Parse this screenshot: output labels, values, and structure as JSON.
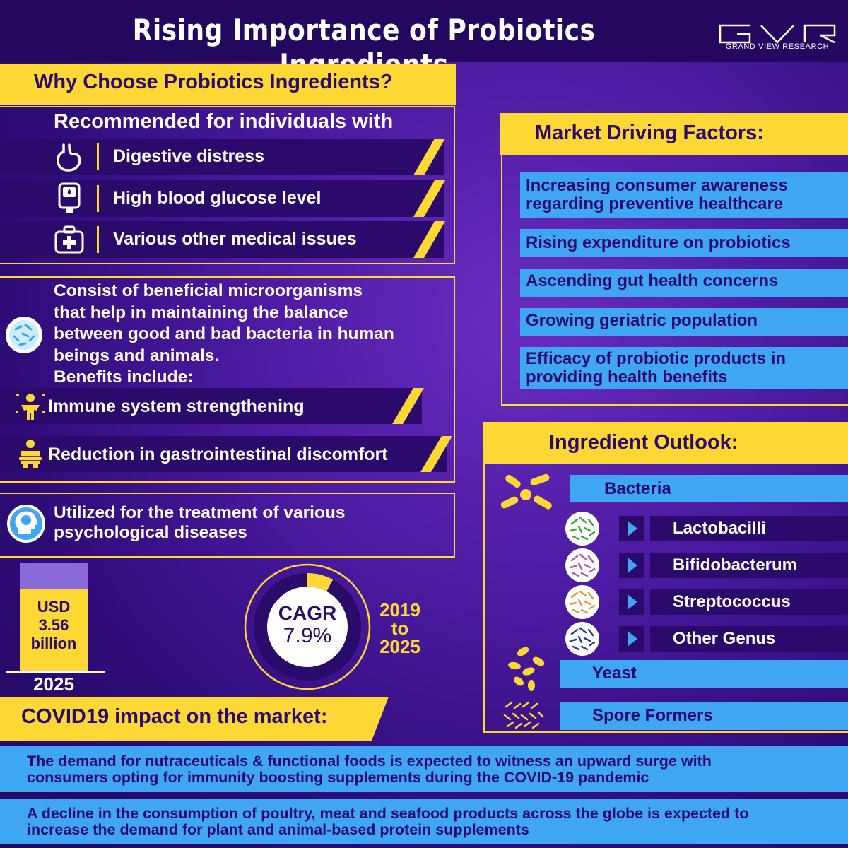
{
  "header": {
    "title": "Rising Importance of Probiotics Ingredients",
    "logo_text": "GRAND VIEW RESEARCH",
    "logo_icon": "gvr-logo-icon"
  },
  "why": {
    "title": "Why Choose Probiotics Ingredients?",
    "recommended_heading": "Recommended for individuals with",
    "conditions": [
      {
        "label": "Digestive distress",
        "icon": "stomach-icon"
      },
      {
        "label": "High blood glucose level",
        "icon": "glucometer-icon"
      },
      {
        "label": "Various other medical issues",
        "icon": "first-aid-icon"
      }
    ],
    "description_lines": [
      "Consist of beneficial microorganisms",
      "that help in maintaining the balance",
      "between good and bad bacteria in human",
      "beings and animals.",
      "Benefits include:"
    ],
    "benefits": [
      {
        "label": "Immune system strengthening",
        "icon": "immune-figure-icon"
      },
      {
        "label": "Reduction in gastrointestinal discomfort",
        "icon": "stomach-ache-icon"
      }
    ],
    "psych_lines": [
      "Utilized for the treatment of various",
      "psychological diseases"
    ]
  },
  "market_size": {
    "currency": "USD",
    "value": "3.56",
    "unit": "billion",
    "year": "2025",
    "cagr_label": "CAGR",
    "cagr_value": "7.9%",
    "cagr_fraction": 0.079,
    "period_lines": [
      "2019",
      "to",
      "2025"
    ]
  },
  "drivers": {
    "title": "Market Driving Factors:",
    "items": [
      [
        "Increasing consumer awareness",
        "regarding preventive healthcare"
      ],
      [
        "Rising expenditure on probiotics"
      ],
      [
        "Ascending gut health concerns"
      ],
      [
        "Growing geriatric population"
      ],
      [
        "Efficacy of probiotic products in",
        "providing health benefits"
      ]
    ]
  },
  "ingredients": {
    "title": "Ingredient Outlook:",
    "bacteria": "Bacteria",
    "genus": [
      {
        "label": "Lactobacilli",
        "color": "#3aa83a"
      },
      {
        "label": "Bifidobacterum",
        "color": "#b05ab8"
      },
      {
        "label": "Streptococcus",
        "color": "#d8a040"
      },
      {
        "label": "Other Genus",
        "color": "#2a3c9a"
      }
    ],
    "yeast": "Yeast",
    "spore": "Spore Formers"
  },
  "covid": {
    "title": "COVID19 impact on the market:",
    "items": [
      [
        "The demand for nutraceuticals & functional foods is expected to witness an upward surge with",
        "consumers opting for immunity boosting supplements during the COVID-19 pandemic"
      ],
      [
        "A decline in the consumption of poultry, meat and seafood products across the globe is expected to",
        "increase the demand for plant and animal-based protein supplements"
      ]
    ]
  },
  "colors": {
    "accent_yellow": "#fdd835",
    "accent_blue": "#3ea6f2",
    "dark_purple": "#2a0b6b"
  }
}
